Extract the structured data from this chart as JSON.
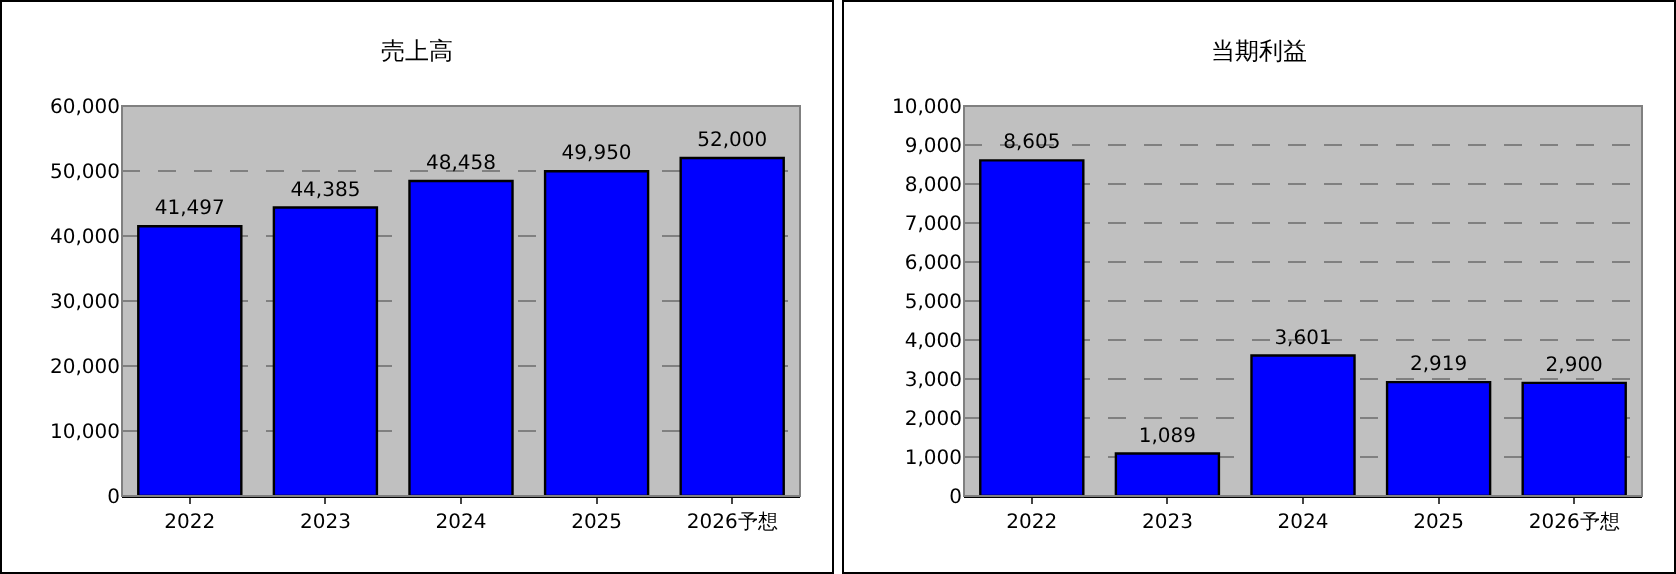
{
  "chart_data": [
    {
      "type": "bar",
      "title": "売上高",
      "categories": [
        "2022",
        "2023",
        "2024",
        "2025",
        "2026予想"
      ],
      "values": [
        41497,
        44385,
        48458,
        49950,
        52000
      ],
      "value_labels": [
        "41,497",
        "44,385",
        "48,458",
        "49,950",
        "52,000"
      ],
      "color": "#0000ff",
      "ylim": [
        0,
        60000
      ],
      "yticks": [
        {
          "value": 0,
          "label": "0"
        },
        {
          "value": 10000,
          "label": "10,000"
        },
        {
          "value": 20000,
          "label": "20,000"
        },
        {
          "value": 30000,
          "label": "30,000"
        },
        {
          "value": 40000,
          "label": "40,000"
        },
        {
          "value": 50000,
          "label": "50,000"
        },
        {
          "value": 60000,
          "label": "60,000"
        }
      ],
      "grid": "y"
    },
    {
      "type": "bar",
      "title": "当期利益",
      "categories": [
        "2022",
        "2023",
        "2024",
        "2025",
        "2026予想"
      ],
      "values": [
        8605,
        1089,
        3601,
        2919,
        2900
      ],
      "value_labels": [
        "8,605",
        "1,089",
        "3,601",
        "2,919",
        "2,900"
      ],
      "color": "#0000ff",
      "ylim": [
        0,
        10000
      ],
      "yticks": [
        {
          "value": 0,
          "label": "0"
        },
        {
          "value": 1000,
          "label": "1,000"
        },
        {
          "value": 2000,
          "label": "2,000"
        },
        {
          "value": 3000,
          "label": "3,000"
        },
        {
          "value": 4000,
          "label": "4,000"
        },
        {
          "value": 5000,
          "label": "5,000"
        },
        {
          "value": 6000,
          "label": "6,000"
        },
        {
          "value": 7000,
          "label": "7,000"
        },
        {
          "value": 8000,
          "label": "8,000"
        },
        {
          "value": 9000,
          "label": "9,000"
        },
        {
          "value": 10000,
          "label": "10,000"
        }
      ],
      "grid": "y"
    }
  ]
}
